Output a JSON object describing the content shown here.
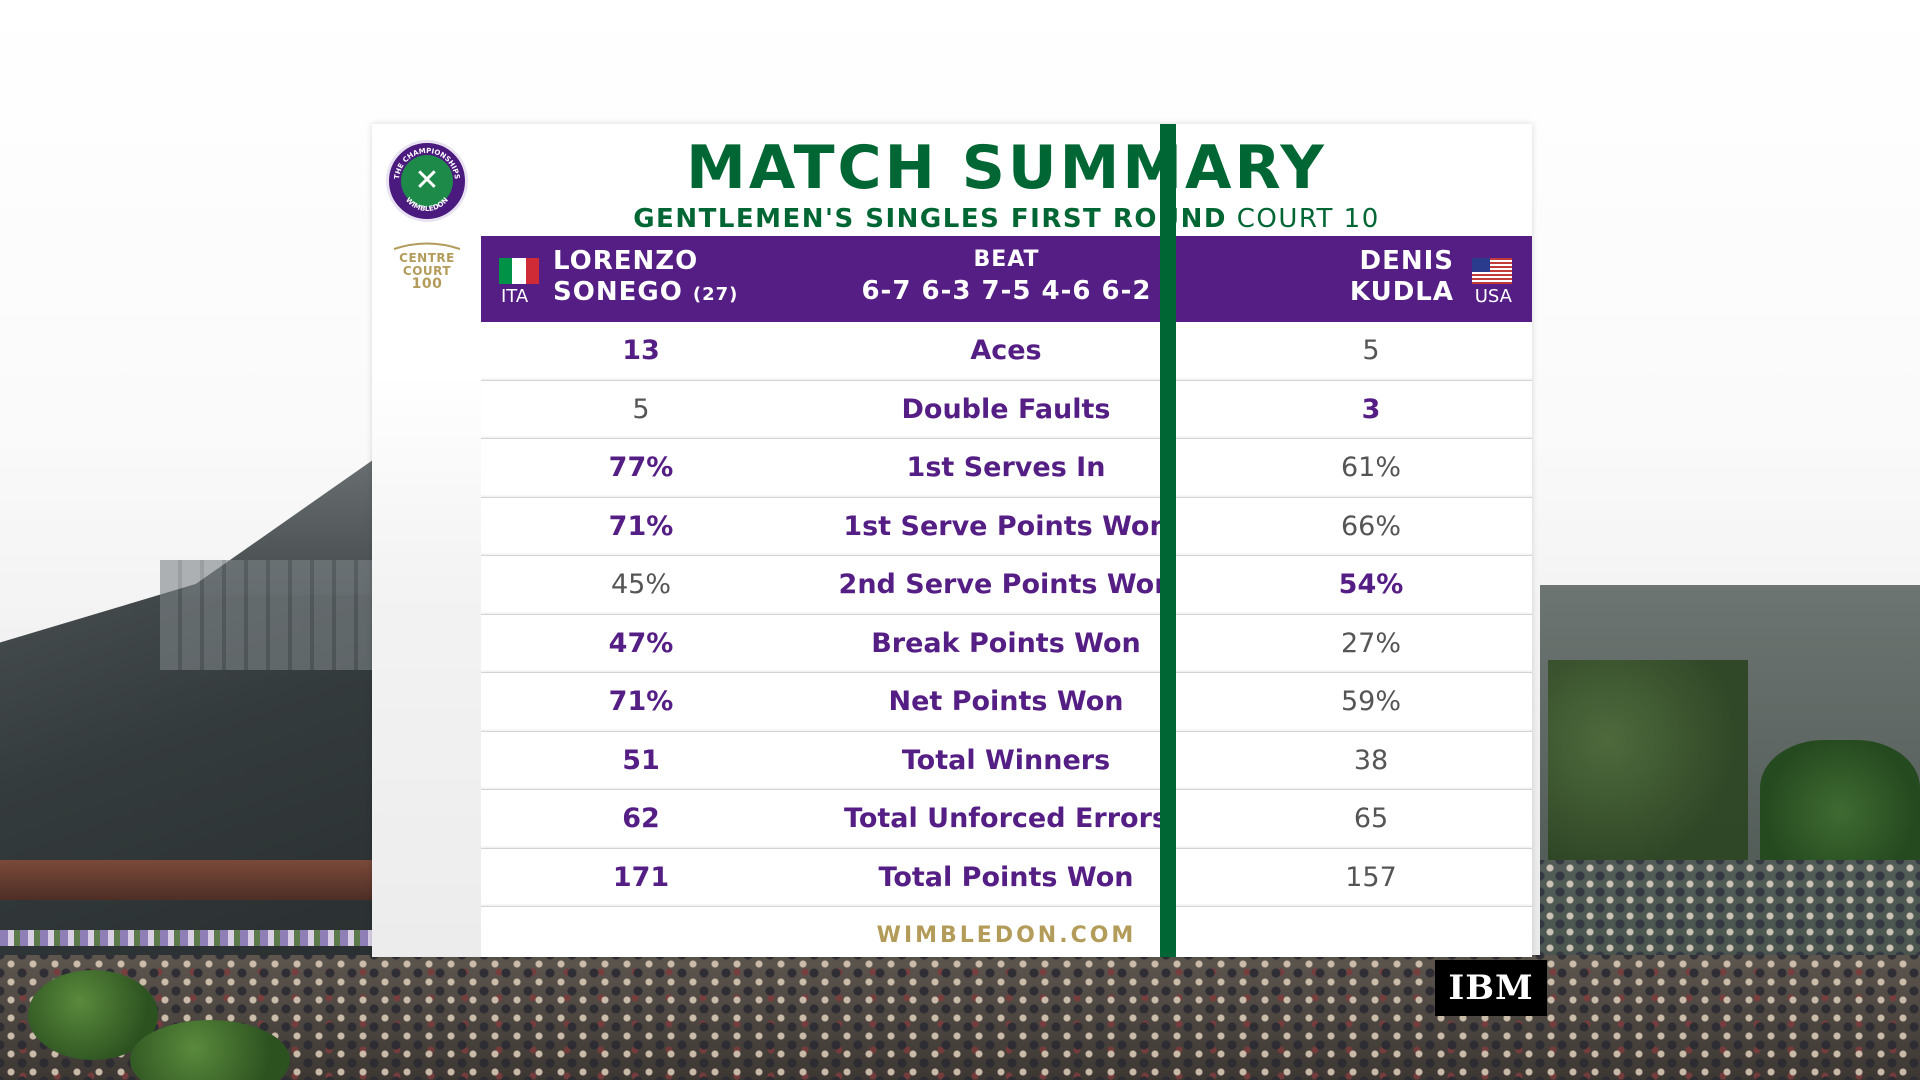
{
  "header": {
    "title": "MATCH SUMMARY",
    "round": "GENTLEMEN'S SINGLES FIRST ROUND",
    "court": "COURT 10"
  },
  "branding": {
    "logo_icon": "wimbledon-logo",
    "logo_ring_text_top": "THE CHAMPIONSHIPS",
    "logo_ring_text_bottom": "WIMBLEDON",
    "centre_court_line1": "CENTRE",
    "centre_court_line2": "COURT",
    "centre_court_line3": "100",
    "footer": "WIMBLEDON.COM",
    "sponsor": "IBM"
  },
  "players": {
    "left": {
      "first": "LORENZO",
      "last": "SONEGO",
      "seed": "(27)",
      "country": "ITA"
    },
    "right": {
      "first": "DENIS",
      "last": "KUDLA",
      "country": "USA"
    }
  },
  "result": {
    "verb": "BEAT",
    "score": "6-7 6-3 7-5 4-6 6-2"
  },
  "stats": [
    {
      "label": "Aces",
      "left": "13",
      "right": "5",
      "leader": "left"
    },
    {
      "label": "Double Faults",
      "left": "5",
      "right": "3",
      "leader": "right"
    },
    {
      "label": "1st Serves In",
      "left": "77%",
      "right": "61%",
      "leader": "left"
    },
    {
      "label": "1st Serve Points Won",
      "left": "71%",
      "right": "66%",
      "leader": "left"
    },
    {
      "label": "2nd Serve Points Won",
      "left": "45%",
      "right": "54%",
      "leader": "right"
    },
    {
      "label": "Break Points Won",
      "left": "47%",
      "right": "27%",
      "leader": "left"
    },
    {
      "label": "Net Points Won",
      "left": "71%",
      "right": "59%",
      "leader": "left"
    },
    {
      "label": "Total Winners",
      "left": "51",
      "right": "38",
      "leader": "left"
    },
    {
      "label": "Total Unforced Errors",
      "left": "62",
      "right": "65",
      "leader": "left"
    },
    {
      "label": "Total Points Won",
      "left": "171",
      "right": "157",
      "leader": "left"
    }
  ],
  "colors": {
    "purple": "#541e84",
    "green": "#006633",
    "gold": "#b39b59",
    "flag_ita": [
      "#009246",
      "#ffffff",
      "#ce2b37"
    ]
  }
}
